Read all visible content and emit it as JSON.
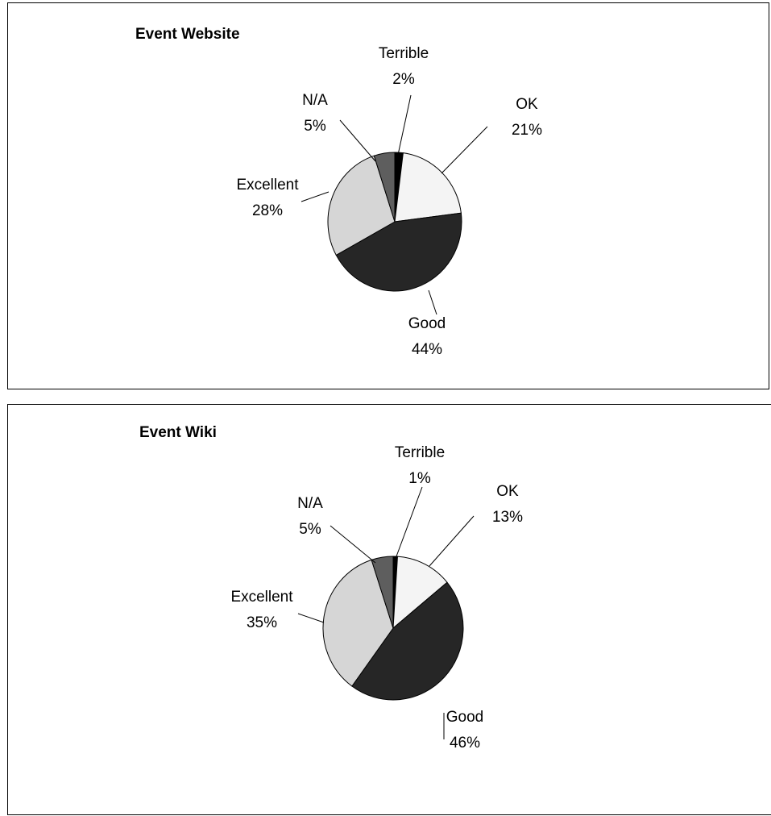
{
  "chart_data": [
    {
      "type": "pie",
      "title": "Event Website",
      "slices": [
        {
          "label": "Terrible",
          "value": 2,
          "pct_label": "2%",
          "color": "#000000"
        },
        {
          "label": "OK",
          "value": 21,
          "pct_label": "21%",
          "color": "#f4f4f4"
        },
        {
          "label": "Good",
          "value": 44,
          "pct_label": "44%",
          "color": "#262626"
        },
        {
          "label": "Excellent",
          "value": 28,
          "pct_label": "28%",
          "color": "#d6d6d6"
        },
        {
          "label": "N/A",
          "value": 5,
          "pct_label": "5%",
          "color": "#5e5e5e"
        }
      ]
    },
    {
      "type": "pie",
      "title": "Event Wiki",
      "slices": [
        {
          "label": "Terrible",
          "value": 1,
          "pct_label": "1%",
          "color": "#000000"
        },
        {
          "label": "OK",
          "value": 13,
          "pct_label": "13%",
          "color": "#f4f4f4"
        },
        {
          "label": "Good",
          "value": 46,
          "pct_label": "46%",
          "color": "#262626"
        },
        {
          "label": "Excellent",
          "value": 35,
          "pct_label": "35%",
          "color": "#d6d6d6"
        },
        {
          "label": "N/A",
          "value": 5,
          "pct_label": "5%",
          "color": "#5e5e5e"
        }
      ]
    }
  ]
}
